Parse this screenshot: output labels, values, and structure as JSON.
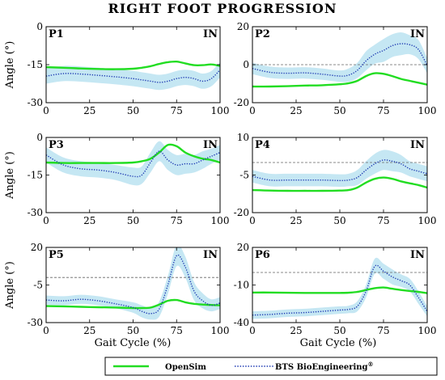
{
  "chart_data": {
    "type": "line",
    "title": "RIGHT FOOT PROGRESSION",
    "xlabel": "Gait Cycle (%)",
    "ylabel": "Angle (°)",
    "xlim": [
      0,
      100
    ],
    "xticks": [
      "0",
      "25",
      "50",
      "75",
      "100"
    ],
    "in_label": "IN",
    "legend": {
      "placement": "bottom",
      "entries": [
        {
          "name": "OpenSim",
          "color": "#22dd22",
          "style": "solid"
        },
        {
          "name": "BTS BioEngineering",
          "superscript": "®",
          "color": "#1f3bb3",
          "style": "dotted"
        }
      ]
    },
    "band_color": "#bfe4f2",
    "zero_line": true,
    "x": [
      0,
      10,
      20,
      30,
      40,
      50,
      55,
      60,
      65,
      70,
      75,
      80,
      85,
      90,
      95,
      100
    ],
    "panels": [
      {
        "name": "P1",
        "ylim": [
          -30,
          0
        ],
        "yticks": [
          "0",
          "-15",
          "-30"
        ],
        "opensim": [
          -16,
          -16.2,
          -16.5,
          -16.7,
          -16.8,
          -16.6,
          -16.2,
          -15.6,
          -14.7,
          -14,
          -13.8,
          -14.5,
          -15.2,
          -15.2,
          -14.9,
          -15.5
        ],
        "bts": [
          -19.5,
          -18.5,
          -18.7,
          -19.2,
          -19.8,
          -20.5,
          -21,
          -21.5,
          -22,
          -21.5,
          -20.5,
          -20,
          -20.5,
          -21.5,
          -20.5,
          -17
        ],
        "bts_sd": [
          3,
          3,
          3,
          3,
          3,
          3,
          3,
          3,
          3,
          3,
          3,
          3,
          3,
          3,
          3,
          3
        ]
      },
      {
        "name": "P2",
        "ylim": [
          -20,
          20
        ],
        "yticks": [
          "20",
          "0",
          "-20"
        ],
        "opensim": [
          -11.5,
          -11.5,
          -11.3,
          -11,
          -10.8,
          -10.3,
          -9.8,
          -8.5,
          -6,
          -4.5,
          -4.8,
          -6,
          -7.5,
          -8.5,
          -9.5,
          -10.5
        ],
        "bts": [
          -2,
          -4,
          -4.5,
          -4.3,
          -5,
          -6,
          -5.5,
          -3,
          2,
          5.5,
          7.5,
          10,
          11,
          10.5,
          8,
          -0.5
        ],
        "bts_sd": [
          3,
          3,
          3,
          3,
          3,
          3,
          3.5,
          4,
          5,
          5,
          6,
          6,
          6,
          5,
          5,
          4
        ]
      },
      {
        "name": "P3",
        "ylim": [
          -30,
          0
        ],
        "yticks": [
          "0",
          "-15",
          "-30"
        ],
        "opensim": [
          -10,
          -10.2,
          -10.2,
          -10.2,
          -10.2,
          -10,
          -9.5,
          -8.5,
          -6,
          -3,
          -3.5,
          -6,
          -7.5,
          -8.5,
          -9,
          -10
        ],
        "bts": [
          -7,
          -11,
          -12.5,
          -13,
          -14,
          -15.5,
          -15,
          -10,
          -5.5,
          -9,
          -11,
          -10.5,
          -10.5,
          -9,
          -7.5,
          -6
        ],
        "bts_sd": [
          3,
          3,
          3,
          3,
          3,
          3.5,
          3.5,
          4,
          4,
          4,
          4,
          4,
          3.5,
          3.5,
          3,
          3
        ]
      },
      {
        "name": "P4",
        "ylim": [
          -20,
          10
        ],
        "yticks": [
          "10",
          "-5",
          "-20"
        ],
        "opensim": [
          -11,
          -11.2,
          -11.3,
          -11.3,
          -11.3,
          -11.2,
          -11,
          -10,
          -8,
          -6.5,
          -6,
          -6.5,
          -7.5,
          -8.3,
          -9,
          -10
        ],
        "bts": [
          -5.5,
          -7,
          -7,
          -7,
          -7,
          -7.2,
          -7,
          -6,
          -3,
          -0.5,
          1,
          0.5,
          -0.5,
          -2.5,
          -3.5,
          -4.5
        ],
        "bts_sd": [
          2.5,
          2.5,
          2.5,
          2.5,
          2.5,
          2.5,
          2.5,
          3,
          3.5,
          4,
          4,
          4,
          3.5,
          3,
          3,
          3
        ]
      },
      {
        "name": "P5",
        "ylim": [
          -30,
          20
        ],
        "yticks": [
          "20",
          "-5",
          "-30"
        ],
        "opensim": [
          -19,
          -19.2,
          -19.5,
          -19.8,
          -20,
          -20.3,
          -20.3,
          -20,
          -18,
          -15.5,
          -15,
          -16.5,
          -17.5,
          -18,
          -18.3,
          -18.5
        ],
        "bts": [
          -15,
          -15.5,
          -14.5,
          -15.5,
          -17.5,
          -20,
          -22.5,
          -24,
          -21,
          -5,
          14.5,
          7,
          -9,
          -15.5,
          -18.5,
          -17
        ],
        "bts_sd": [
          3,
          3,
          3,
          3,
          3,
          3.5,
          4,
          4,
          5,
          6,
          7,
          7,
          6,
          5,
          4,
          4
        ]
      },
      {
        "name": "P6",
        "ylim": [
          -40,
          20
        ],
        "yticks": [
          "20",
          "-10",
          "-40"
        ],
        "opensim": [
          -16,
          -16,
          -16.2,
          -16.3,
          -16.3,
          -16.3,
          -16.1,
          -15.5,
          -14,
          -12.5,
          -12,
          -13,
          -14,
          -14.8,
          -15.5,
          -16.5
        ],
        "bts": [
          -34,
          -33.5,
          -32.5,
          -32,
          -31,
          -30,
          -29.5,
          -27,
          -15,
          5,
          1,
          -3.5,
          -6.5,
          -10,
          -20,
          -31
        ],
        "bts_sd": [
          3,
          3,
          3,
          3,
          3,
          3,
          3,
          4,
          5,
          6,
          6,
          6,
          5,
          5,
          5,
          4
        ]
      }
    ]
  }
}
